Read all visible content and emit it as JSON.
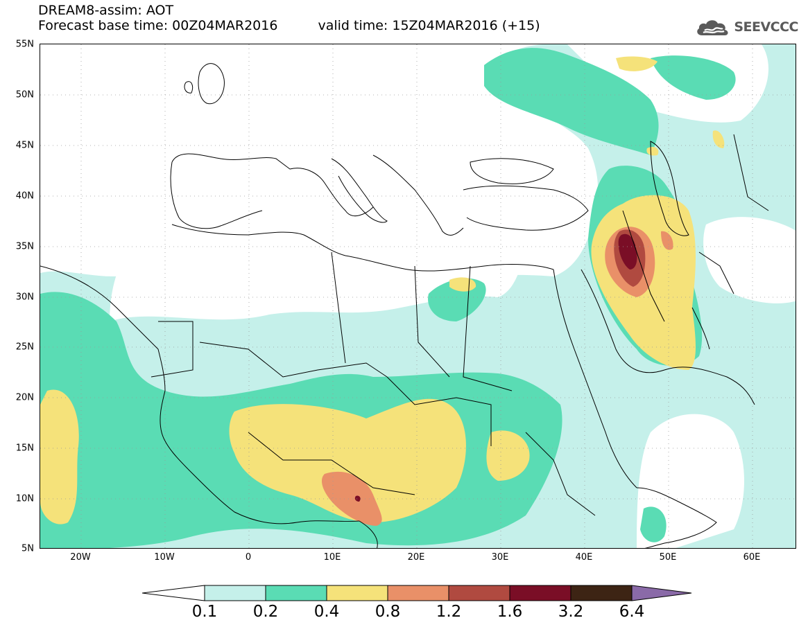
{
  "header": {
    "title": "DREAM8-assim: AOT",
    "forecast_base": "Forecast base time: 00Z04MAR2016",
    "valid_time": "valid time: 15Z04MAR2016 (+15)"
  },
  "logo": {
    "text": "SEEVCCC",
    "icon": "cloud-icon"
  },
  "axes": {
    "lat_labels": [
      "55N",
      "50N",
      "45N",
      "40N",
      "35N",
      "30N",
      "25N",
      "20N",
      "15N",
      "10N",
      "5N"
    ],
    "lon_labels": [
      "20W",
      "10W",
      "0",
      "10E",
      "20E",
      "30E",
      "40E",
      "50E",
      "60E"
    ]
  },
  "colorbar": {
    "labels": [
      "0.1",
      "0.2",
      "0.4",
      "0.8",
      "1.2",
      "1.6",
      "3.2",
      "6.4"
    ],
    "colors": [
      "#ffffff",
      "#c5f0ea",
      "#5adcb4",
      "#f5e27a",
      "#e99068",
      "#b04a40",
      "#7a0e26",
      "#3d2414",
      "#8a6aa8"
    ]
  }
}
